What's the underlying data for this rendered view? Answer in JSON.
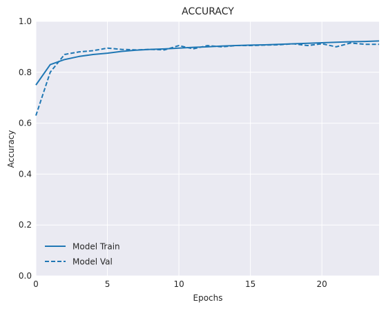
{
  "chart_data": {
    "type": "line",
    "title": "ACCURACY",
    "xlabel": "Epochs",
    "ylabel": "Accuracy",
    "xlim": [
      0,
      24
    ],
    "ylim": [
      0.0,
      1.0
    ],
    "x_ticks": [
      0,
      5,
      10,
      15,
      20
    ],
    "y_ticks": [
      0.0,
      0.2,
      0.4,
      0.6,
      0.8,
      1.0
    ],
    "grid": true,
    "legend_position": "bottom-left",
    "series": [
      {
        "name": "Model Train",
        "style": "solid",
        "color": "#1f77b4",
        "x": [
          0,
          1,
          2,
          3,
          4,
          5,
          6,
          7,
          8,
          9,
          10,
          11,
          12,
          13,
          14,
          15,
          16,
          17,
          18,
          19,
          20,
          21,
          22,
          23,
          24
        ],
        "values": [
          0.75,
          0.83,
          0.85,
          0.862,
          0.87,
          0.875,
          0.882,
          0.887,
          0.89,
          0.892,
          0.895,
          0.898,
          0.9,
          0.903,
          0.905,
          0.907,
          0.908,
          0.91,
          0.912,
          0.914,
          0.916,
          0.918,
          0.92,
          0.921,
          0.923
        ]
      },
      {
        "name": "Model Val",
        "style": "dashed",
        "color": "#1f77b4",
        "x": [
          0,
          1,
          2,
          3,
          4,
          5,
          6,
          7,
          8,
          9,
          10,
          11,
          12,
          13,
          14,
          15,
          16,
          17,
          18,
          19,
          20,
          21,
          22,
          23,
          24
        ],
        "values": [
          0.63,
          0.8,
          0.87,
          0.88,
          0.885,
          0.895,
          0.89,
          0.888,
          0.89,
          0.888,
          0.905,
          0.892,
          0.905,
          0.9,
          0.905,
          0.905,
          0.907,
          0.908,
          0.912,
          0.905,
          0.912,
          0.9,
          0.915,
          0.91,
          0.91
        ]
      }
    ]
  }
}
